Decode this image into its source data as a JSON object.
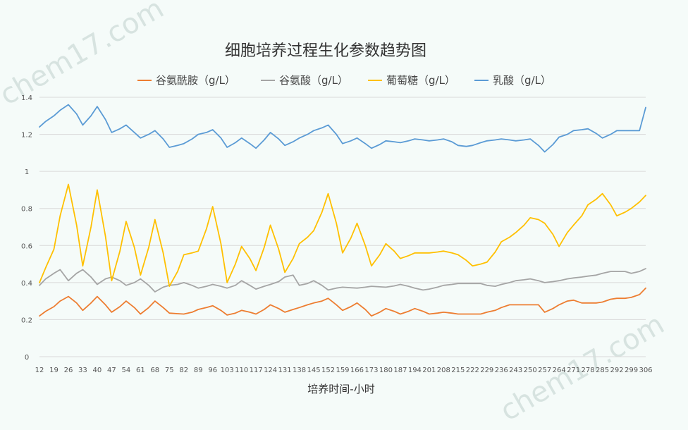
{
  "chart_data": {
    "type": "line",
    "title": "细胞培养过程生化参数趋势图",
    "xlabel": "培养时间-小时",
    "ylabel": "",
    "ylim": [
      0,
      1.4
    ],
    "yticks": [
      "0",
      "0.2",
      "0.4",
      "0.6",
      "0.8",
      "1",
      "1.2",
      "1.4"
    ],
    "grid": true,
    "legend": "top",
    "x": [
      12,
      15,
      19,
      22,
      26,
      30,
      33,
      37,
      40,
      44,
      47,
      51,
      54,
      58,
      61,
      65,
      68,
      72,
      75,
      79,
      82,
      86,
      89,
      93,
      96,
      100,
      103,
      107,
      110,
      114,
      117,
      121,
      124,
      128,
      131,
      135,
      138,
      142,
      145,
      149,
      152,
      156,
      159,
      163,
      166,
      170,
      173,
      177,
      180,
      184,
      187,
      191,
      194,
      198,
      201,
      205,
      208,
      212,
      215,
      219,
      222,
      226,
      229,
      233,
      236,
      240,
      243,
      247,
      250,
      254,
      257,
      261,
      264,
      268,
      271,
      275,
      278,
      282,
      285,
      289,
      292,
      296,
      299,
      303,
      306
    ],
    "xtick_labels": [
      "12",
      "19",
      "26",
      "33",
      "40",
      "47",
      "54",
      "61",
      "68",
      "75",
      "82",
      "89",
      "96",
      "103",
      "110",
      "117",
      "124",
      "131",
      "138",
      "145",
      "152",
      "159",
      "166",
      "173",
      "180",
      "187",
      "194",
      "201",
      "208",
      "215",
      "222",
      "229",
      "236",
      "243",
      "250",
      "257",
      "264",
      "271",
      "278",
      "285",
      "292",
      "299",
      "306"
    ],
    "series": [
      {
        "name": "谷氨酰胺（g/L）",
        "color": "#ed7d31",
        "values": [
          0.22,
          0.245,
          0.27,
          0.3,
          0.325,
          0.29,
          0.25,
          0.29,
          0.325,
          0.28,
          0.24,
          0.27,
          0.3,
          0.265,
          0.23,
          0.265,
          0.3,
          0.265,
          0.235,
          0.232,
          0.23,
          0.24,
          0.255,
          0.265,
          0.275,
          0.25,
          0.225,
          0.235,
          0.25,
          0.24,
          0.23,
          0.255,
          0.28,
          0.26,
          0.24,
          0.255,
          0.265,
          0.28,
          0.29,
          0.3,
          0.315,
          0.28,
          0.25,
          0.27,
          0.29,
          0.255,
          0.22,
          0.24,
          0.26,
          0.245,
          0.23,
          0.245,
          0.26,
          0.245,
          0.23,
          0.235,
          0.24,
          0.235,
          0.23,
          0.23,
          0.23,
          0.23,
          0.24,
          0.25,
          0.265,
          0.28,
          0.28,
          0.28,
          0.28,
          0.28,
          0.24,
          0.26,
          0.28,
          0.3,
          0.305,
          0.29,
          0.29,
          0.29,
          0.295,
          0.31,
          0.315,
          0.315,
          0.32,
          0.335,
          0.37
        ]
      },
      {
        "name": "谷氨酸（g/L）",
        "color": "#a5a5a5",
        "values": [
          0.385,
          0.42,
          0.45,
          0.47,
          0.41,
          0.45,
          0.47,
          0.43,
          0.39,
          0.42,
          0.43,
          0.41,
          0.385,
          0.4,
          0.42,
          0.385,
          0.35,
          0.375,
          0.385,
          0.39,
          0.4,
          0.385,
          0.37,
          0.38,
          0.39,
          0.38,
          0.37,
          0.385,
          0.41,
          0.385,
          0.365,
          0.38,
          0.39,
          0.405,
          0.43,
          0.44,
          0.385,
          0.395,
          0.41,
          0.385,
          0.36,
          0.37,
          0.375,
          0.372,
          0.37,
          0.375,
          0.38,
          0.377,
          0.375,
          0.382,
          0.39,
          0.38,
          0.37,
          0.36,
          0.365,
          0.375,
          0.385,
          0.39,
          0.395,
          0.395,
          0.395,
          0.395,
          0.385,
          0.38,
          0.39,
          0.4,
          0.41,
          0.415,
          0.42,
          0.41,
          0.4,
          0.405,
          0.41,
          0.42,
          0.425,
          0.43,
          0.435,
          0.44,
          0.45,
          0.46,
          0.46,
          0.46,
          0.45,
          0.46,
          0.475
        ]
      },
      {
        "name": "葡萄糖（g/L）",
        "color": "#ffc000",
        "values": [
          0.4,
          0.48,
          0.58,
          0.76,
          0.93,
          0.71,
          0.49,
          0.7,
          0.9,
          0.65,
          0.41,
          0.57,
          0.73,
          0.59,
          0.44,
          0.59,
          0.74,
          0.56,
          0.38,
          0.46,
          0.55,
          0.56,
          0.57,
          0.69,
          0.81,
          0.61,
          0.4,
          0.5,
          0.595,
          0.53,
          0.465,
          0.59,
          0.71,
          0.58,
          0.455,
          0.53,
          0.61,
          0.645,
          0.68,
          0.78,
          0.88,
          0.72,
          0.56,
          0.64,
          0.72,
          0.6,
          0.49,
          0.55,
          0.61,
          0.57,
          0.53,
          0.545,
          0.56,
          0.56,
          0.56,
          0.565,
          0.57,
          0.56,
          0.55,
          0.52,
          0.49,
          0.5,
          0.51,
          0.565,
          0.62,
          0.645,
          0.67,
          0.71,
          0.75,
          0.74,
          0.72,
          0.66,
          0.595,
          0.67,
          0.71,
          0.76,
          0.82,
          0.85,
          0.88,
          0.82,
          0.76,
          0.78,
          0.8,
          0.835,
          0.87
        ]
      },
      {
        "name": "乳酸（g/L）",
        "color": "#5b9bd5",
        "values": [
          1.24,
          1.27,
          1.3,
          1.33,
          1.36,
          1.31,
          1.25,
          1.3,
          1.35,
          1.28,
          1.21,
          1.23,
          1.25,
          1.21,
          1.18,
          1.2,
          1.22,
          1.175,
          1.13,
          1.14,
          1.15,
          1.175,
          1.2,
          1.21,
          1.225,
          1.18,
          1.13,
          1.155,
          1.18,
          1.15,
          1.125,
          1.17,
          1.21,
          1.175,
          1.14,
          1.16,
          1.18,
          1.2,
          1.22,
          1.235,
          1.25,
          1.2,
          1.15,
          1.165,
          1.18,
          1.15,
          1.125,
          1.145,
          1.165,
          1.16,
          1.155,
          1.165,
          1.175,
          1.17,
          1.165,
          1.17,
          1.175,
          1.16,
          1.14,
          1.135,
          1.14,
          1.155,
          1.165,
          1.17,
          1.175,
          1.17,
          1.165,
          1.17,
          1.175,
          1.14,
          1.105,
          1.145,
          1.185,
          1.2,
          1.22,
          1.225,
          1.23,
          1.205,
          1.18,
          1.2,
          1.22,
          1.22,
          1.22,
          1.22,
          1.345
        ]
      }
    ]
  },
  "watermark": "chem17.com"
}
